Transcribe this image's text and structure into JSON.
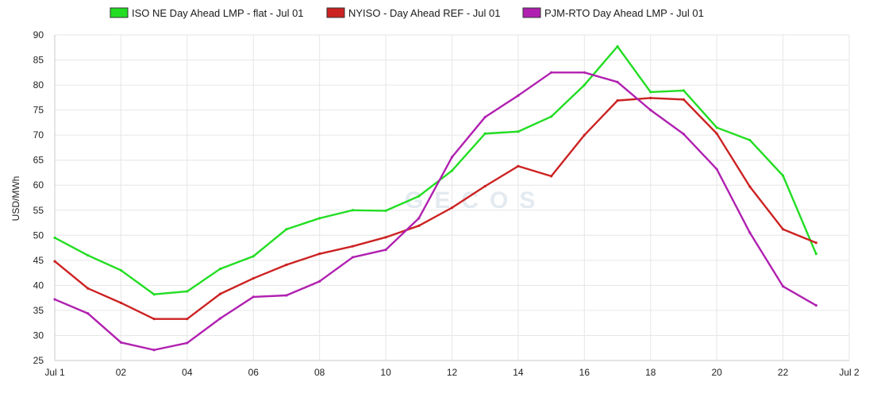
{
  "chart_data": {
    "type": "line",
    "title": "",
    "xlabel": "",
    "ylabel": "USD/MWh",
    "ylim": [
      25,
      90
    ],
    "y_ticks": [
      25,
      30,
      35,
      40,
      45,
      50,
      55,
      60,
      65,
      70,
      75,
      80,
      85,
      90
    ],
    "x_hours": [
      0,
      1,
      2,
      3,
      4,
      5,
      6,
      7,
      8,
      9,
      10,
      11,
      12,
      13,
      14,
      15,
      16,
      17,
      18,
      19,
      20,
      21,
      22,
      23
    ],
    "x_ticks": [
      {
        "hour": 0,
        "label": "Jul 1"
      },
      {
        "hour": 2,
        "label": "02"
      },
      {
        "hour": 4,
        "label": "04"
      },
      {
        "hour": 6,
        "label": "06"
      },
      {
        "hour": 8,
        "label": "08"
      },
      {
        "hour": 10,
        "label": "10"
      },
      {
        "hour": 12,
        "label": "12"
      },
      {
        "hour": 14,
        "label": "14"
      },
      {
        "hour": 16,
        "label": "16"
      },
      {
        "hour": 18,
        "label": "18"
      },
      {
        "hour": 20,
        "label": "20"
      },
      {
        "hour": 22,
        "label": "22"
      },
      {
        "hour": 24,
        "label": "Jul 2"
      }
    ],
    "grid": true,
    "legend_position": "top",
    "watermark": "GECOS",
    "series": [
      {
        "name": "ISO NE Day Ahead LMP - flat - Jul 01",
        "color": "#22dd22",
        "values": [
          49.5,
          46.0,
          43.0,
          38.2,
          38.8,
          43.3,
          45.8,
          51.2,
          53.4,
          55.0,
          54.9,
          57.8,
          62.9,
          70.3,
          70.7,
          73.7,
          80.0,
          87.7,
          78.6,
          78.9,
          71.5,
          69.0,
          61.9,
          46.3
        ]
      },
      {
        "name": "NYISO - Day Ahead REF - Jul 01",
        "color": "#cc2222",
        "values": [
          44.8,
          39.4,
          36.5,
          33.3,
          33.3,
          38.3,
          41.4,
          44.1,
          46.3,
          47.8,
          49.6,
          51.9,
          55.5,
          59.8,
          63.8,
          61.8,
          70.0,
          76.9,
          77.4,
          77.1,
          70.3,
          59.7,
          51.2,
          48.5
        ]
      },
      {
        "name": "PJM-RTO Day Ahead LMP - Jul 01",
        "color": "#b020b0",
        "values": [
          37.2,
          34.4,
          28.6,
          27.1,
          28.5,
          33.4,
          37.7,
          38.0,
          40.8,
          45.6,
          47.1,
          53.4,
          65.6,
          73.6,
          77.9,
          82.5,
          82.5,
          80.6,
          75.0,
          70.2,
          63.2,
          50.5,
          39.8,
          36.0
        ]
      }
    ]
  }
}
